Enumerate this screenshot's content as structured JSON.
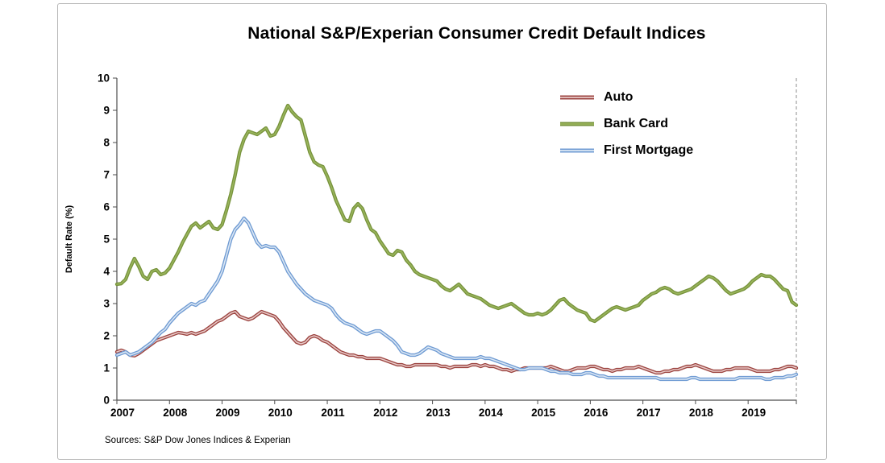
{
  "title": "National S&P/Experian Consumer Credit Default Indices",
  "source_note": "Sources: S&P Dow Jones Indices & Experian",
  "chart_data": {
    "type": "line",
    "title": "National S&P/Experian Consumer Credit Default Indices",
    "xlabel": "",
    "ylabel": "Default Rate (%)",
    "ylim": [
      0,
      10
    ],
    "y_ticks": [
      0,
      1,
      2,
      3,
      4,
      5,
      6,
      7,
      8,
      9,
      10
    ],
    "x_tick_labels": [
      "2007",
      "2008",
      "2009",
      "2010",
      "2011",
      "2012",
      "2013",
      "2014",
      "2015",
      "2016",
      "2017",
      "2018",
      "2019"
    ],
    "x_frequency": "monthly",
    "grid": false,
    "legend_position": "inside-top-right",
    "series": [
      {
        "name": "Auto",
        "color": "#9c4440",
        "color_inner": "#e8cac8",
        "values": [
          1.5,
          1.55,
          1.5,
          1.4,
          1.38,
          1.45,
          1.55,
          1.65,
          1.75,
          1.85,
          1.9,
          1.95,
          2.0,
          2.05,
          2.1,
          2.08,
          2.05,
          2.1,
          2.05,
          2.1,
          2.15,
          2.25,
          2.35,
          2.45,
          2.5,
          2.6,
          2.7,
          2.75,
          2.6,
          2.55,
          2.5,
          2.55,
          2.65,
          2.75,
          2.7,
          2.65,
          2.6,
          2.45,
          2.25,
          2.1,
          1.95,
          1.8,
          1.75,
          1.8,
          1.95,
          2.0,
          1.95,
          1.85,
          1.8,
          1.7,
          1.6,
          1.5,
          1.45,
          1.4,
          1.4,
          1.35,
          1.35,
          1.3,
          1.3,
          1.3,
          1.3,
          1.25,
          1.2,
          1.15,
          1.1,
          1.1,
          1.05,
          1.05,
          1.1,
          1.1,
          1.1,
          1.1,
          1.1,
          1.1,
          1.05,
          1.05,
          1.0,
          1.05,
          1.05,
          1.05,
          1.05,
          1.1,
          1.1,
          1.05,
          1.1,
          1.05,
          1.05,
          1.0,
          0.95,
          0.95,
          0.9,
          0.95,
          0.95,
          1.0,
          1.0,
          1.0,
          1.0,
          1.0,
          1.0,
          1.05,
          1.0,
          0.95,
          0.9,
          0.9,
          0.95,
          1.0,
          1.0,
          1.0,
          1.05,
          1.05,
          1.0,
          0.95,
          0.95,
          0.9,
          0.95,
          0.95,
          1.0,
          1.0,
          1.0,
          1.05,
          1.0,
          0.95,
          0.9,
          0.85,
          0.85,
          0.9,
          0.9,
          0.95,
          0.95,
          1.0,
          1.05,
          1.05,
          1.1,
          1.05,
          1.0,
          0.95,
          0.9,
          0.9,
          0.9,
          0.95,
          0.95,
          1.0,
          1.0,
          1.0,
          1.0,
          0.95,
          0.9,
          0.9,
          0.9,
          0.9,
          0.95,
          0.95,
          1.0,
          1.05,
          1.05,
          1.0
        ]
      },
      {
        "name": "Bank Card",
        "color": "#77933c",
        "color_inner": "#9ab55c",
        "values": [
          3.6,
          3.62,
          3.75,
          4.1,
          4.4,
          4.15,
          3.85,
          3.75,
          4.0,
          4.05,
          3.9,
          3.95,
          4.1,
          4.35,
          4.6,
          4.9,
          5.15,
          5.4,
          5.5,
          5.35,
          5.45,
          5.55,
          5.35,
          5.3,
          5.45,
          5.9,
          6.4,
          7.0,
          7.7,
          8.1,
          8.35,
          8.3,
          8.25,
          8.35,
          8.45,
          8.2,
          8.25,
          8.5,
          8.85,
          9.15,
          8.95,
          8.8,
          8.7,
          8.2,
          7.7,
          7.4,
          7.3,
          7.25,
          6.95,
          6.6,
          6.2,
          5.9,
          5.6,
          5.55,
          5.95,
          6.1,
          5.95,
          5.6,
          5.3,
          5.2,
          4.95,
          4.75,
          4.55,
          4.5,
          4.65,
          4.6,
          4.35,
          4.2,
          4.0,
          3.9,
          3.85,
          3.8,
          3.75,
          3.7,
          3.55,
          3.45,
          3.4,
          3.5,
          3.6,
          3.45,
          3.3,
          3.25,
          3.2,
          3.15,
          3.05,
          2.95,
          2.9,
          2.85,
          2.9,
          2.95,
          3.0,
          2.9,
          2.8,
          2.7,
          2.65,
          2.65,
          2.7,
          2.65,
          2.7,
          2.8,
          2.95,
          3.1,
          3.15,
          3.0,
          2.9,
          2.8,
          2.75,
          2.7,
          2.5,
          2.45,
          2.55,
          2.65,
          2.75,
          2.85,
          2.9,
          2.85,
          2.8,
          2.85,
          2.9,
          2.95,
          3.1,
          3.2,
          3.3,
          3.35,
          3.45,
          3.5,
          3.45,
          3.35,
          3.3,
          3.35,
          3.4,
          3.45,
          3.55,
          3.65,
          3.75,
          3.85,
          3.8,
          3.7,
          3.55,
          3.4,
          3.3,
          3.35,
          3.4,
          3.45,
          3.55,
          3.7,
          3.8,
          3.9,
          3.85,
          3.85,
          3.75,
          3.6,
          3.45,
          3.4,
          3.05,
          2.95
        ]
      },
      {
        "name": "First Mortgage",
        "color": "#6f9bd3",
        "color_inner": "#dbe7f4",
        "values": [
          1.4,
          1.45,
          1.5,
          1.4,
          1.45,
          1.5,
          1.6,
          1.7,
          1.8,
          1.95,
          2.1,
          2.2,
          2.4,
          2.55,
          2.7,
          2.8,
          2.9,
          3.0,
          2.95,
          3.05,
          3.1,
          3.3,
          3.5,
          3.7,
          4.0,
          4.5,
          5.0,
          5.3,
          5.45,
          5.65,
          5.5,
          5.2,
          4.9,
          4.75,
          4.8,
          4.75,
          4.75,
          4.6,
          4.3,
          4.0,
          3.8,
          3.6,
          3.45,
          3.3,
          3.2,
          3.1,
          3.05,
          3.0,
          2.95,
          2.85,
          2.65,
          2.5,
          2.4,
          2.35,
          2.3,
          2.2,
          2.1,
          2.05,
          2.1,
          2.15,
          2.15,
          2.05,
          1.95,
          1.85,
          1.7,
          1.5,
          1.45,
          1.4,
          1.4,
          1.45,
          1.55,
          1.65,
          1.6,
          1.55,
          1.45,
          1.4,
          1.35,
          1.3,
          1.3,
          1.3,
          1.3,
          1.3,
          1.3,
          1.35,
          1.3,
          1.3,
          1.25,
          1.2,
          1.15,
          1.1,
          1.05,
          1.0,
          0.95,
          0.95,
          1.0,
          1.0,
          1.0,
          1.0,
          0.95,
          0.9,
          0.9,
          0.85,
          0.85,
          0.85,
          0.8,
          0.8,
          0.8,
          0.85,
          0.85,
          0.8,
          0.75,
          0.75,
          0.7,
          0.7,
          0.7,
          0.7,
          0.7,
          0.7,
          0.7,
          0.7,
          0.7,
          0.7,
          0.7,
          0.7,
          0.65,
          0.65,
          0.65,
          0.65,
          0.65,
          0.65,
          0.65,
          0.7,
          0.7,
          0.65,
          0.65,
          0.65,
          0.65,
          0.65,
          0.65,
          0.65,
          0.65,
          0.65,
          0.7,
          0.7,
          0.7,
          0.7,
          0.7,
          0.7,
          0.65,
          0.65,
          0.7,
          0.7,
          0.7,
          0.75,
          0.75,
          0.8
        ]
      }
    ]
  }
}
